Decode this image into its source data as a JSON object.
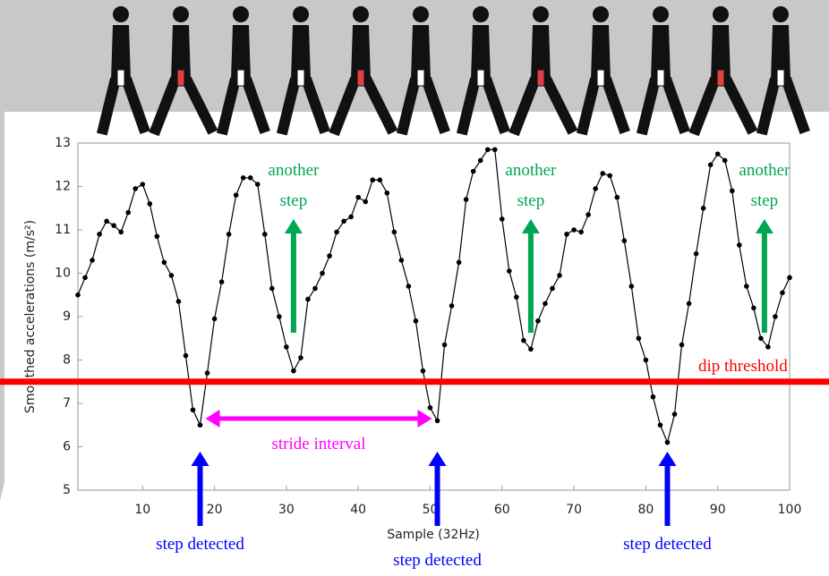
{
  "chart_data": {
    "type": "line",
    "xlabel": "Sample (32Hz)",
    "ylabel": "Smoothed accelerations (m/s²)",
    "x": [
      1,
      2,
      3,
      4,
      5,
      6,
      7,
      8,
      9,
      10,
      11,
      12,
      13,
      14,
      15,
      16,
      17,
      18,
      19,
      20,
      21,
      22,
      23,
      24,
      25,
      26,
      27,
      28,
      29,
      30,
      31,
      32,
      33,
      34,
      35,
      36,
      37,
      38,
      39,
      40,
      41,
      42,
      43,
      44,
      45,
      46,
      47,
      48,
      49,
      50,
      51,
      52,
      53,
      54,
      55,
      56,
      57,
      58,
      59,
      60,
      61,
      62,
      63,
      64,
      65,
      66,
      67,
      68,
      69,
      70,
      71,
      72,
      73,
      74,
      75,
      76,
      77,
      78,
      79,
      80,
      81,
      82,
      83,
      84,
      85,
      86,
      87,
      88,
      89,
      90,
      91,
      92,
      93,
      94,
      95,
      96,
      97,
      98,
      99,
      100
    ],
    "values": [
      9.5,
      9.9,
      10.3,
      10.9,
      11.2,
      11.1,
      10.95,
      11.4,
      11.95,
      12.05,
      11.6,
      10.85,
      10.25,
      9.95,
      9.35,
      8.1,
      6.85,
      6.5,
      7.7,
      8.95,
      9.8,
      10.9,
      11.8,
      12.2,
      12.2,
      12.05,
      10.9,
      9.65,
      9.0,
      8.3,
      7.75,
      8.05,
      9.4,
      9.65,
      10.0,
      10.4,
      10.95,
      11.2,
      11.3,
      11.75,
      11.65,
      12.15,
      12.15,
      11.85,
      10.95,
      10.3,
      9.7,
      8.9,
      7.75,
      6.9,
      6.6,
      8.35,
      9.25,
      10.25,
      11.7,
      12.35,
      12.6,
      12.85,
      12.85,
      11.25,
      10.05,
      9.45,
      8.45,
      8.25,
      8.9,
      9.3,
      9.65,
      9.95,
      10.9,
      11.0,
      10.95,
      11.35,
      11.95,
      12.3,
      12.25,
      11.75,
      10.75,
      9.7,
      8.5,
      8.0,
      7.15,
      6.5,
      6.1,
      6.75,
      8.35,
      9.3,
      10.45,
      11.5,
      12.5,
      12.75,
      12.6,
      11.9,
      10.65,
      9.7,
      9.2,
      8.5,
      8.3,
      9.0,
      9.55,
      9.9
    ],
    "color": "#000000",
    "xlim": [
      1,
      100
    ],
    "xticks": [
      10,
      20,
      30,
      40,
      50,
      60,
      70,
      80,
      90,
      100
    ],
    "ylim": [
      5,
      13
    ],
    "yticks": [
      5,
      6,
      7,
      8,
      9,
      10,
      11,
      12,
      13
    ],
    "grid": false,
    "threshold": {
      "value": 7.5,
      "label": "dip threshold",
      "color": "#ff0000"
    },
    "annotations": [
      {
        "text": "another step",
        "x": 31,
        "color": "#00a651"
      },
      {
        "text": "another step",
        "x": 64,
        "color": "#00a651"
      },
      {
        "text": "another step",
        "x": 96.5,
        "color": "#00a651"
      }
    ],
    "steps": [
      {
        "text": "step detected",
        "x": 18,
        "color": "#0000ff"
      },
      {
        "text": "step detected",
        "x": 51,
        "color": "#0000ff"
      },
      {
        "text": "step detected",
        "x": 83,
        "color": "#0000ff"
      }
    ],
    "stride": {
      "text": "stride interval",
      "from": 18,
      "to": 51,
      "color": "#ff00ff"
    }
  }
}
